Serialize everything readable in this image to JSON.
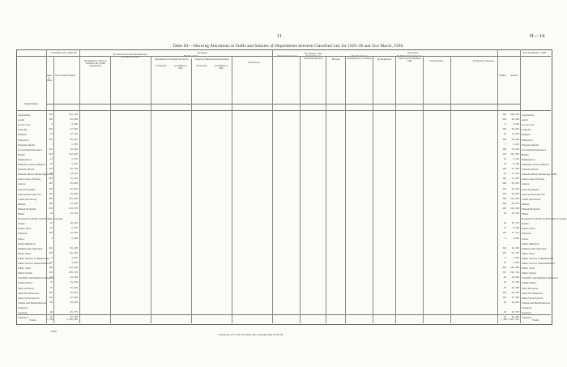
{
  "page_number": "11",
  "page_ref": "H.—14.",
  "title": "Table III.—Showing Alterations in Staffs and Salaries of Departments between Classified List for 1929–30 and 31st March, 1930.",
  "footnote": "Fractions of £1 are not taken into consideration in Totals.",
  "footer_left": "Totals",
  "header": {
    "department": "Department.",
    "classified_list": "Classified List, 1929–30.",
    "number_of_officers": "Number of Officers.",
    "total_classified_salaries": "Total Classified Salaries.",
    "increases": "Increases.",
    "decreases": "Decreases.",
    "new_staff": "By New Staff.",
    "additions": "By Additions to Salary on Promotion, &c. (within Departments).",
    "transfer_in": "By Transfer from other Departments (not Uncashed Vacancies).",
    "appointments": "Appointments from Outside the Service.",
    "temporary": "Temporary Employees made Permanent.",
    "to_vacancies": "To Vacancies.",
    "as_additions": "As Additions to Staff.",
    "total_increase": "Total Increase.",
    "by_reduction": "By Reduction in Salary.",
    "by_transfer_out": "By Transfer to other Departments or to Unclassified Positions.",
    "by_death": "By Death.",
    "retirements": "By Retirements on Superannuation or to Pension.",
    "resignations": "By Resignations.",
    "dismissals": "By Dismissal (including Cases where Services Dispensed with).",
    "total_decreases": "Total Decreases.",
    "net_change": "Net Increase or Decrease.",
    "at_31_march": "At 31st March, 1930.",
    "number": "Number.",
    "amount": "Amount.",
    "units": "£"
  },
  "rows": [
    {
      "name": "Agriculture",
      "n": "342",
      "amt": "161,409",
      "r31n": "346",
      "r31": "163,279"
    },
    {
      "name": "Audit",
      "n": "136",
      "amt": "68,250",
      "r31n": "136",
      "r31": "69,606"
    },
    {
      "name": "Crown Law",
      "n": "6",
      "amt": "3,855",
      "r31n": "6",
      "r31": "3,855"
    },
    {
      "name": "Customs",
      "n": "262",
      "amt": "87,960",
      "r31n": "266",
      "r31": "90,638"
    },
    {
      "name": "Defence",
      "n": "42",
      "amt": "12,740",
      "r31n": "45",
      "r31": "13,345"
    },
    {
      "name": "Education",
      "n": "165",
      "amt": "56,315",
      "r31n": "165",
      "r31": "58,680"
    },
    {
      "name": "External Affairs",
      "n": "7",
      "amt": "2,455",
      "r31n": "7",
      "r31": "2,455"
    },
    {
      "name": "Government Insurance",
      "n": "131",
      "amt": "52,892",
      "r31n": "136",
      "r31": "54,823"
    },
    {
      "name": "Health",
      "n": "324",
      "amt": "114,286",
      "r31n": "327",
      "r31": "115,950"
    },
    {
      "name": "Immigration",
      "n": "11",
      "amt": "3,715",
      "r31n": "11",
      "r31": "3,715"
    },
    {
      "name": "Industries and Commerce",
      "n": "23",
      "amt": "9,840",
      "r31n": "23",
      "r31": "9,800"
    },
    {
      "name": "Internal Affairs",
      "n": "183",
      "amt": "56,750",
      "r31n": "184",
      "r31": "57,306"
    },
    {
      "name": "Internal Affairs (Relieving Staff)",
      "n": "49",
      "amt": "11,510",
      "r31n": "49",
      "r31": "11,510"
    },
    {
      "name": "Justice (also Prisons)",
      "n": "284",
      "amt": "75,820",
      "r31n": "286",
      "r31": "76,855"
    },
    {
      "name": "Labour",
      "n": "187",
      "amt": "55,285",
      "r31n": "186",
      "r31": "55,015"
    },
    {
      "name": "Land and Deeds",
      "n": "125",
      "amt": "38,060",
      "r31n": "125",
      "r31": "38,240"
    },
    {
      "name": "Land and Income Tax",
      "n": "120",
      "amt": "48,880",
      "r31n": "120",
      "r31": "48,955"
    },
    {
      "name": "Lands and Survey",
      "n": "506",
      "amt": "191,055",
      "r31n": "508",
      "r31": "192,945"
    },
    {
      "name": "Marine",
      "n": "188",
      "amt": "64,250",
      "r31n": "186",
      "r31": "63,810"
    },
    {
      "name": "Mental Hospitals",
      "n": "930",
      "amt": "213,535",
      "r31n": "935",
      "r31": "215,460"
    },
    {
      "name": "Mines",
      "n": "23",
      "amt": "12,125",
      "r31n": "23",
      "r31": "12,125"
    },
    {
      "name": "National Provident and Friendly Societies",
      "n": "",
      "amt": "",
      "r31n": "",
      "r31": ""
    },
    {
      "name": "Native",
      "n": "87",
      "amt": "30,462",
      "r31n": "88",
      "r31": "30,772"
    },
    {
      "name": "Native Trust",
      "n": "27",
      "amt": "8,530",
      "r31n": "27",
      "r31": "8,530"
    },
    {
      "name": "Pensions",
      "n": "105",
      "amt": "27,532",
      "r31n": "104",
      "r31": "27,172"
    },
    {
      "name": "Police",
      "n": "6",
      "amt": "2,030",
      "r31n": "6",
      "r31": "2,030"
    },
    {
      "name": "Prime Minister's",
      "n": "",
      "amt": "",
      "r31n": "",
      "r31": ""
    },
    {
      "name": "Printing and Stationery",
      "n": "218",
      "amt": "36,205",
      "r31n": "218",
      "r31": "36,405"
    },
    {
      "name": "Public Trust",
      "n": "325",
      "amt": "89,455",
      "r31n": "333",
      "r31": "91,795"
    },
    {
      "name": "Public Service Commissioner",
      "n": "5",
      "amt": "3,015",
      "r31n": "5",
      "r31": "3,015"
    },
    {
      "name": "Public Service Superannuation",
      "n": "16",
      "amt": "3,960",
      "r31n": "16",
      "r31": "3,960"
    },
    {
      "name": "Public Trust",
      "n": "499",
      "amt": "184,120",
      "r31n": "501",
      "r31": "186,595"
    },
    {
      "name": "Public Works",
      "n": "724",
      "amt": "235,170",
      "r31n": "727",
      "r31": "236,718"
    },
    {
      "name": "Scientific and Industrial Research",
      "n": "26",
      "amt": "12,620",
      "r31n": "26",
      "r31": "12,620"
    },
    {
      "name": "Stamp Duties",
      "n": "78",
      "amt": "21,730",
      "r31n": "78",
      "r31": "21,730"
    },
    {
      "name": "State Advances",
      "n": "87",
      "amt": "22,185",
      "r31n": "87",
      "r31": "22,255"
    },
    {
      "name": "State Fire Insurance",
      "n": "142",
      "amt": "39,870",
      "r31n": "142",
      "r31": "40,190"
    },
    {
      "name": "State Forest Service",
      "n": "110",
      "amt": "37,085",
      "r31n": "110",
      "r31": "37,085"
    },
    {
      "name": "Tourist and Health Resorts",
      "n": "86",
      "amt": "20,635",
      "r31n": "86",
      "r31": "20,635"
    },
    {
      "name": "Transport",
      "n": "",
      "amt": "",
      "r31n": "",
      "r31": ""
    },
    {
      "name": "Treasury",
      "n": "86",
      "amt": "25,775",
      "r31n": "86",
      "r31": "25,775"
    },
    {
      "name": "Valuation",
      "n": "82",
      "amt": "30,465",
      "r31n": "82",
      "r31": "30,465"
    }
  ],
  "totals": {
    "label": "Totals",
    "n": "7,443",
    "amt": "2,286,200",
    "r31n": "7,488",
    "r31": "2,307,597"
  }
}
